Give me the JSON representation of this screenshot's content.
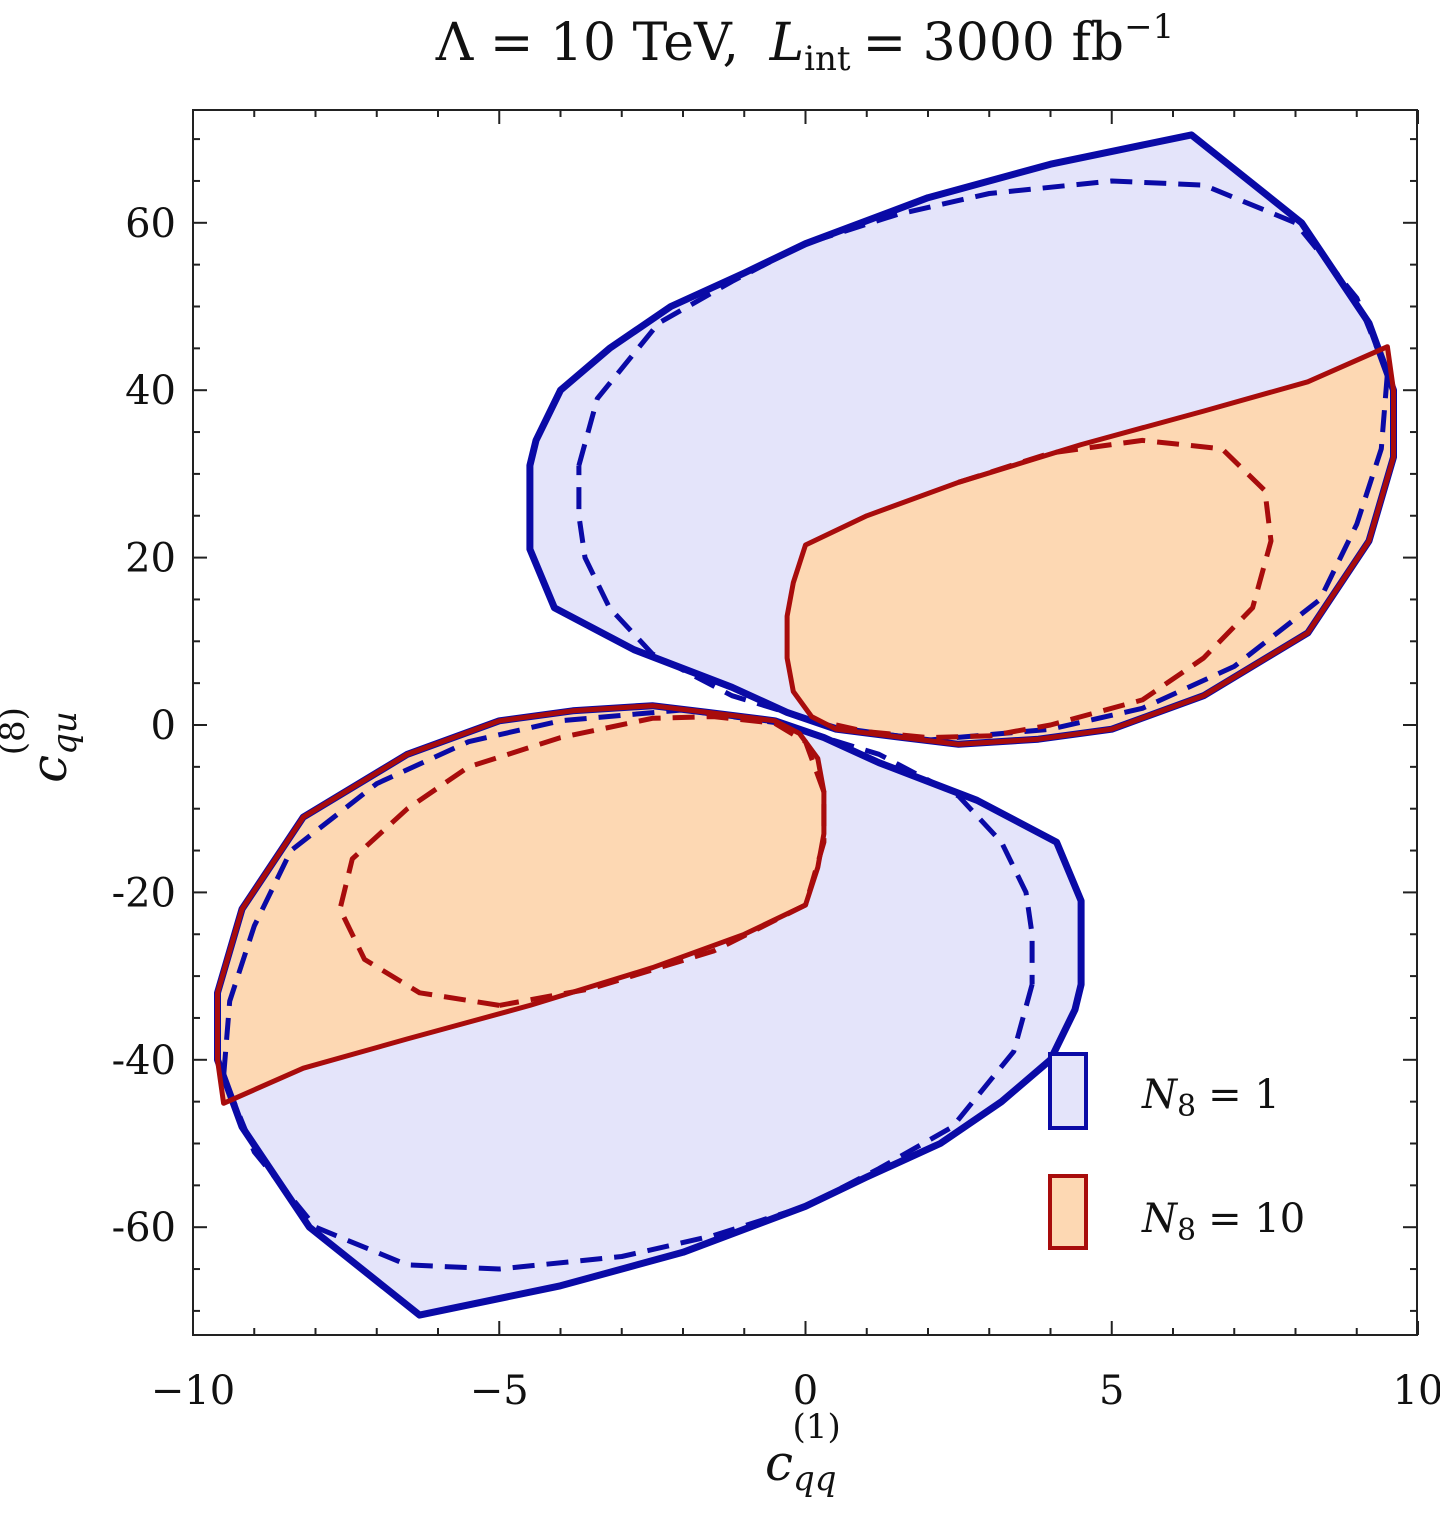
{
  "chart_data": {
    "type": "scatter",
    "title": {
      "lambda_label": "Λ = 10 TeV,",
      "lumi_symbol": "L",
      "lumi_subscript": "int",
      "lumi_value": "= 3000 fb",
      "lumi_exponent": "−1"
    },
    "xlabel": {
      "symbol": "c",
      "subscript": "qq",
      "superscript": "(1)"
    },
    "ylabel": {
      "symbol": "c",
      "subscript": "qu",
      "superscript": "(8)"
    },
    "xlim": [
      -10,
      10
    ],
    "ylim": [
      -73,
      73
    ],
    "xticks": [
      -10,
      -5,
      0,
      5,
      10
    ],
    "xtick_labels": [
      "−10",
      "−5",
      "0",
      "5",
      "10"
    ],
    "yticks": [
      60,
      40,
      20,
      0,
      -20,
      -40,
      -60
    ],
    "ytick_labels": [
      "60",
      "40",
      "20",
      "0",
      "-20",
      "-40",
      "-60"
    ],
    "colors": {
      "n1_line": "#0a0aa6",
      "n1_fill": "#e4e4fa",
      "n10_line": "#a80c0c",
      "n10_fill": "#fdd8b3"
    },
    "legend": {
      "position": "bottom-right",
      "entries": [
        {
          "symbol": "N",
          "subscript": "8",
          "value": "= 1",
          "series": "N8=1"
        },
        {
          "symbol": "N",
          "subscript": "8",
          "value": "= 10",
          "series": "N8=10"
        }
      ]
    },
    "series": [
      {
        "name": "N8=1 solid (upper region)",
        "style": "solid-filled",
        "color_key": "n1",
        "points": [
          [
            6.3,
            70.5
          ],
          [
            8.1,
            60
          ],
          [
            9.2,
            48
          ],
          [
            9.6,
            40
          ],
          [
            9.6,
            32
          ],
          [
            9.2,
            22
          ],
          [
            8.2,
            11
          ],
          [
            6.5,
            3.5
          ],
          [
            5.0,
            -0.5
          ],
          [
            3.8,
            -1.7
          ],
          [
            2.5,
            -2.3
          ],
          [
            1.6,
            -1.5
          ],
          [
            0.5,
            -0.5
          ],
          [
            -0.3,
            1.5
          ],
          [
            -1.2,
            4.5
          ],
          [
            -2.8,
            9
          ],
          [
            -4.1,
            14
          ],
          [
            -4.5,
            21
          ],
          [
            -4.5,
            27
          ],
          [
            -4.5,
            31
          ],
          [
            -4.4,
            34
          ],
          [
            -4.0,
            40
          ],
          [
            -3.2,
            45
          ],
          [
            -2.2,
            50
          ],
          [
            -1.0,
            54
          ],
          [
            0,
            57.5
          ],
          [
            2.0,
            63
          ],
          [
            4.0,
            67
          ],
          [
            6.3,
            70.5
          ]
        ]
      },
      {
        "name": "N8=1 dashed (upper region)",
        "style": "dashed",
        "color_key": "n1",
        "points": [
          [
            -3.7,
            31
          ],
          [
            -3.4,
            39
          ],
          [
            -2.4,
            48
          ],
          [
            -1.2,
            53
          ],
          [
            0,
            57.5
          ],
          [
            1.5,
            61
          ],
          [
            3.0,
            63.5
          ],
          [
            5.0,
            65
          ],
          [
            6.5,
            64.5
          ],
          [
            8.0,
            60
          ],
          [
            9.0,
            51
          ],
          [
            9.5,
            42
          ],
          [
            9.4,
            33
          ],
          [
            9.0,
            24
          ],
          [
            8.4,
            15
          ],
          [
            7.0,
            7
          ],
          [
            5.5,
            2
          ],
          [
            4.0,
            -0.5
          ],
          [
            2.0,
            -1.8
          ],
          [
            0.5,
            -0.3
          ],
          [
            -1.2,
            3.5
          ],
          [
            -2.5,
            8.5
          ],
          [
            -3.2,
            14
          ],
          [
            -3.6,
            20
          ],
          [
            -3.7,
            25
          ],
          [
            -3.7,
            31
          ]
        ]
      },
      {
        "name": "N8=1 solid (lower region)",
        "style": "solid-filled",
        "color_key": "n1",
        "points": [
          [
            -6.3,
            -70.5
          ],
          [
            -8.1,
            -60
          ],
          [
            -9.2,
            -48
          ],
          [
            -9.6,
            -40
          ],
          [
            -9.6,
            -32
          ],
          [
            -9.2,
            -22
          ],
          [
            -8.2,
            -11
          ],
          [
            -6.5,
            -3.5
          ],
          [
            -5.0,
            0.5
          ],
          [
            -3.8,
            1.7
          ],
          [
            -2.5,
            2.3
          ],
          [
            -1.6,
            1.5
          ],
          [
            -0.5,
            0.5
          ],
          [
            0.3,
            -1.5
          ],
          [
            1.2,
            -4.5
          ],
          [
            2.8,
            -9
          ],
          [
            4.1,
            -14
          ],
          [
            4.5,
            -21
          ],
          [
            4.5,
            -27
          ],
          [
            4.5,
            -31
          ],
          [
            4.4,
            -34
          ],
          [
            4.0,
            -40
          ],
          [
            3.2,
            -45
          ],
          [
            2.2,
            -50
          ],
          [
            1.0,
            -54
          ],
          [
            0,
            -57.5
          ],
          [
            -2.0,
            -63
          ],
          [
            -4.0,
            -67
          ],
          [
            -6.3,
            -70.5
          ]
        ]
      },
      {
        "name": "N8=1 dashed (lower region)",
        "style": "dashed",
        "color_key": "n1",
        "points": [
          [
            3.7,
            -31
          ],
          [
            3.4,
            -39
          ],
          [
            2.4,
            -48
          ],
          [
            1.2,
            -53
          ],
          [
            0,
            -57.5
          ],
          [
            -1.5,
            -61
          ],
          [
            -3.0,
            -63.5
          ],
          [
            -5.0,
            -65
          ],
          [
            -6.5,
            -64.5
          ],
          [
            -8.0,
            -60
          ],
          [
            -9.0,
            -51
          ],
          [
            -9.5,
            -42
          ],
          [
            -9.4,
            -33
          ],
          [
            -9.0,
            -24
          ],
          [
            -8.4,
            -15
          ],
          [
            -7.0,
            -7
          ],
          [
            -5.5,
            -2
          ],
          [
            -4.0,
            0.5
          ],
          [
            -2.0,
            1.8
          ],
          [
            -0.5,
            0.3
          ],
          [
            1.2,
            -3.5
          ],
          [
            2.5,
            -8.5
          ],
          [
            3.2,
            -14
          ],
          [
            3.6,
            -20
          ],
          [
            3.7,
            -25
          ],
          [
            3.7,
            -31
          ]
        ]
      },
      {
        "name": "N8=10 solid (upper region)",
        "style": "solid-filled",
        "color_key": "n10",
        "points": [
          [
            -0.3,
            13
          ],
          [
            -0.2,
            17
          ],
          [
            0,
            21.5
          ],
          [
            1.0,
            25
          ],
          [
            2.5,
            29
          ],
          [
            4.5,
            33.5
          ],
          [
            6.5,
            37.5
          ],
          [
            8.2,
            41
          ],
          [
            9.5,
            45.2
          ],
          [
            9.6,
            40
          ],
          [
            9.6,
            32
          ],
          [
            9.2,
            22
          ],
          [
            8.2,
            11
          ],
          [
            6.5,
            3.5
          ],
          [
            5.0,
            -0.5
          ],
          [
            3.8,
            -1.7
          ],
          [
            2.5,
            -2.3
          ],
          [
            1.6,
            -1.5
          ],
          [
            0.5,
            -0.5
          ],
          [
            0.1,
            1
          ],
          [
            -0.2,
            4
          ],
          [
            -0.3,
            8
          ],
          [
            -0.3,
            13
          ]
        ]
      },
      {
        "name": "N8=10 dashed (upper region)",
        "style": "dashed",
        "color_key": "n10",
        "points": [
          [
            2.5,
            29
          ],
          [
            4.0,
            32.5
          ],
          [
            5.5,
            34
          ],
          [
            6.8,
            33
          ],
          [
            7.5,
            28
          ],
          [
            7.6,
            22
          ],
          [
            7.3,
            14
          ],
          [
            6.5,
            8
          ],
          [
            5.5,
            3
          ],
          [
            4.0,
            0
          ],
          [
            3.0,
            -1.3
          ],
          [
            2.0,
            -1.5
          ],
          [
            1.0,
            -0.8
          ],
          [
            0.5,
            0
          ]
        ]
      },
      {
        "name": "N8=10 solid (lower region)",
        "style": "solid-filled",
        "color_key": "n10",
        "points": [
          [
            0.3,
            -13
          ],
          [
            0.2,
            -17
          ],
          [
            0,
            -21.5
          ],
          [
            -1.0,
            -25
          ],
          [
            -2.5,
            -29
          ],
          [
            -4.5,
            -33.5
          ],
          [
            -6.5,
            -37.5
          ],
          [
            -8.2,
            -41
          ],
          [
            -9.5,
            -45.2
          ],
          [
            -9.6,
            -40
          ],
          [
            -9.6,
            -32
          ],
          [
            -9.2,
            -22
          ],
          [
            -8.2,
            -11
          ],
          [
            -6.5,
            -3.5
          ],
          [
            -5.0,
            0.5
          ],
          [
            -3.8,
            1.7
          ],
          [
            -2.5,
            2.3
          ],
          [
            -1.6,
            1.5
          ],
          [
            -0.5,
            0.5
          ],
          [
            -0.1,
            -1
          ],
          [
            0.2,
            -4
          ],
          [
            0.3,
            -8
          ],
          [
            0.3,
            -13
          ]
        ]
      },
      {
        "name": "N8=10 dashed (lower region)",
        "style": "dashed",
        "color_key": "n10",
        "points": [
          [
            -5.0,
            -33.5
          ],
          [
            -6.3,
            -32
          ],
          [
            -7.2,
            -28
          ],
          [
            -7.6,
            -22
          ],
          [
            -7.4,
            -16
          ],
          [
            -6.5,
            -10
          ],
          [
            -5.5,
            -5
          ],
          [
            -4.0,
            -1.5
          ],
          [
            -2.5,
            0.8
          ],
          [
            -1.5,
            1
          ],
          [
            -0.5,
            0.2
          ],
          [
            0,
            -2
          ],
          [
            0.3,
            -8
          ],
          [
            0.3,
            -14
          ],
          [
            0,
            -21.5
          ],
          [
            -1.5,
            -27
          ],
          [
            -3.5,
            -31.5
          ],
          [
            -5.0,
            -33.5
          ]
        ]
      }
    ]
  }
}
